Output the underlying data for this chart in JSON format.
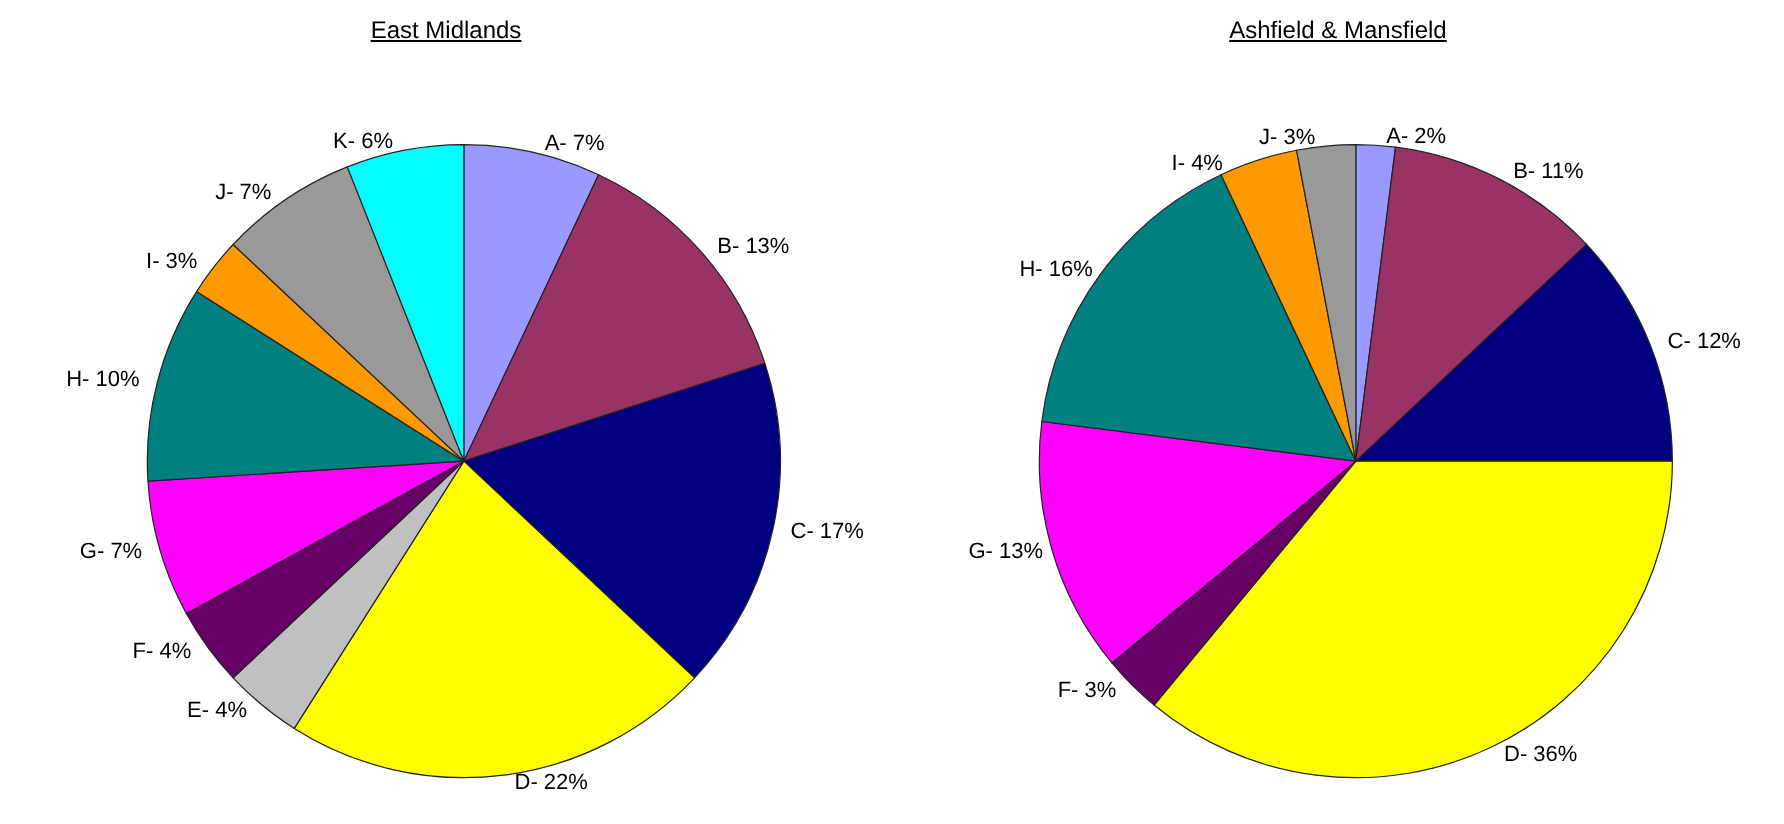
{
  "chart_data": [
    {
      "type": "pie",
      "title": "East Midlands",
      "categories": [
        "A- 7%",
        "B- 13%",
        "C- 17%",
        "D- 22%",
        "E- 4%",
        "F- 4%",
        "G- 7%",
        "H- 10%",
        "I- 3%",
        "J- 7%",
        "K- 6%"
      ],
      "values": [
        7,
        13,
        17,
        22,
        4,
        4,
        7,
        10,
        3,
        7,
        6
      ],
      "colors": [
        "#9999ff",
        "#993366",
        "#000080",
        "#ffff00",
        "#c0c0c0",
        "#660066",
        "#ff00ff",
        "#008080",
        "#ff9900",
        "#999999",
        "#00ffff"
      ],
      "legend": false
    },
    {
      "type": "pie",
      "title": "Ashfield & Mansfield",
      "categories": [
        "A- 2%",
        "B- 11%",
        "C- 12%",
        "D- 36%",
        "F- 3%",
        "G- 13%",
        "H- 16%",
        "I- 4%",
        "J- 3%"
      ],
      "values": [
        2,
        11,
        12,
        36,
        3,
        13,
        16,
        4,
        3
      ],
      "colors": [
        "#9999ff",
        "#993366",
        "#000080",
        "#ffff00",
        "#660066",
        "#ff00ff",
        "#008080",
        "#ff9900",
        "#999999"
      ],
      "legend": false
    }
  ]
}
